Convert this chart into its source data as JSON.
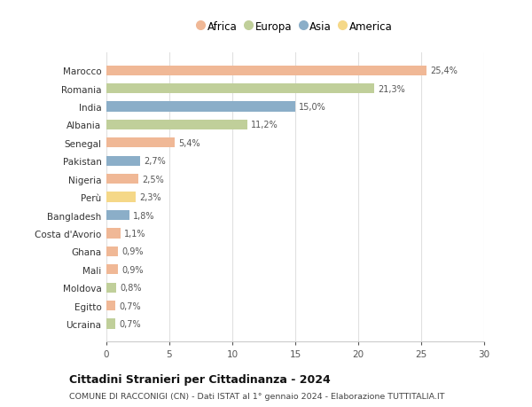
{
  "countries": [
    "Marocco",
    "Romania",
    "India",
    "Albania",
    "Senegal",
    "Pakistan",
    "Nigeria",
    "Perù",
    "Bangladesh",
    "Costa d'Avorio",
    "Ghana",
    "Mali",
    "Moldova",
    "Egitto",
    "Ucraina"
  ],
  "values": [
    25.4,
    21.3,
    15.0,
    11.2,
    5.4,
    2.7,
    2.5,
    2.3,
    1.8,
    1.1,
    0.9,
    0.9,
    0.8,
    0.7,
    0.7
  ],
  "labels": [
    "25,4%",
    "21,3%",
    "15,0%",
    "11,2%",
    "5,4%",
    "2,7%",
    "2,5%",
    "2,3%",
    "1,8%",
    "1,1%",
    "0,9%",
    "0,9%",
    "0,8%",
    "0,7%",
    "0,7%"
  ],
  "continents": [
    "Africa",
    "Europa",
    "Asia",
    "Europa",
    "Africa",
    "Asia",
    "Africa",
    "America",
    "Asia",
    "Africa",
    "Africa",
    "Africa",
    "Europa",
    "Africa",
    "Europa"
  ],
  "colors": {
    "Africa": "#F0B896",
    "Europa": "#C0CF9A",
    "Asia": "#8BAEC8",
    "America": "#F5D888"
  },
  "title": "Cittadini Stranieri per Cittadinanza - 2024",
  "subtitle": "COMUNE DI RACCONIGI (CN) - Dati ISTAT al 1° gennaio 2024 - Elaborazione TUTTITALIA.IT",
  "xlim": [
    0,
    30
  ],
  "xticks": [
    0,
    5,
    10,
    15,
    20,
    25,
    30
  ],
  "bg_color": "#ffffff",
  "grid_color": "#e0e0e0"
}
